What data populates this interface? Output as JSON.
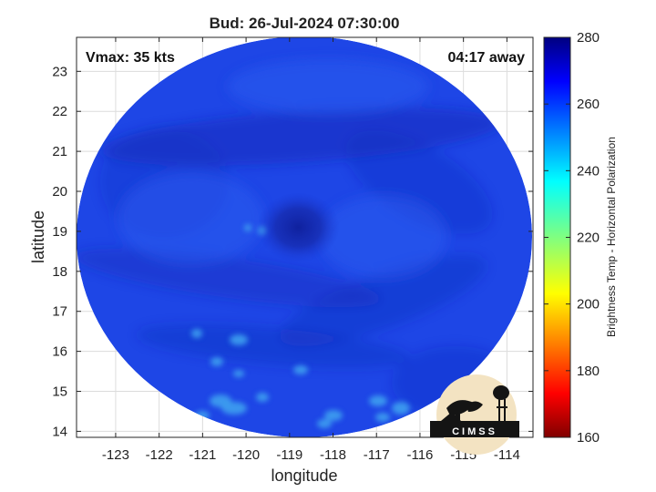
{
  "chart_data": {
    "type": "heatmap",
    "title": "Bud: 26-Jul-2024 07:30:00",
    "xlabel": "longitude",
    "ylabel": "latitude",
    "xlim": [
      -123.9,
      -113.4
    ],
    "ylim": [
      13.85,
      23.85
    ],
    "x_ticks": [
      -123,
      -122,
      -121,
      -120,
      -119,
      -118,
      -117,
      -116,
      -115,
      -114
    ],
    "y_ticks": [
      14,
      15,
      16,
      17,
      18,
      19,
      20,
      21,
      22,
      23
    ],
    "grid": true,
    "annotations": {
      "vmax": "Vmax: 35 kts",
      "away": "04:17 away"
    },
    "storm_center": {
      "lon": -118.8,
      "lat": 19.1
    },
    "colorbar": {
      "label": "Brightness Temp - Horizontal Polarization",
      "range": [
        160,
        280
      ],
      "ticks": [
        160,
        180,
        200,
        220,
        240,
        260,
        280
      ],
      "colormap": "jet"
    },
    "field_typical_value": 262
  },
  "logo": {
    "text": "CIMSS"
  },
  "colors": {
    "field_base": "#1e46e6",
    "field_dark": "#1228b4",
    "field_warm_spots": "#3ea0f0"
  }
}
